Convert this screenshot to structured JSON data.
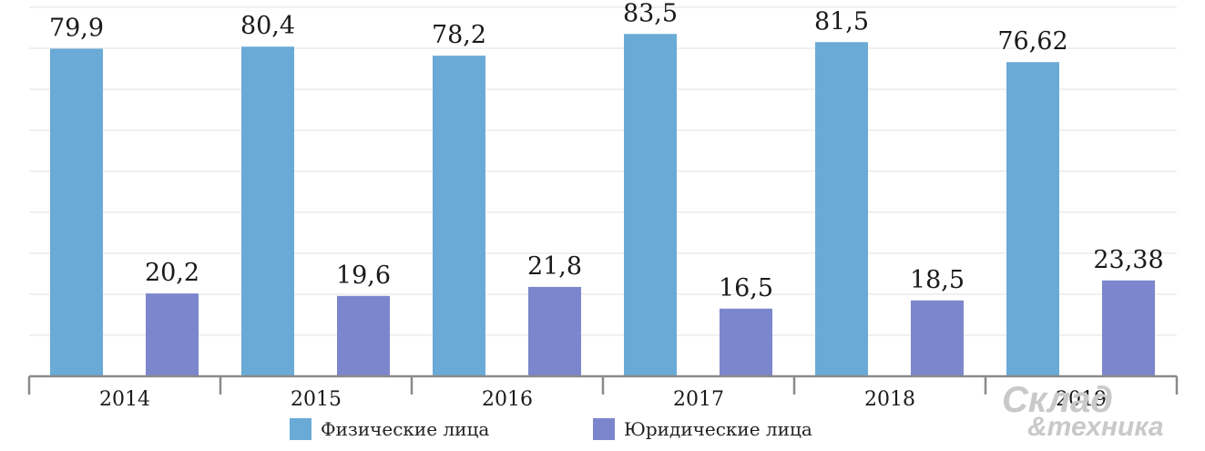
{
  "chart_data": {
    "type": "bar",
    "categories": [
      "2014",
      "2015",
      "2016",
      "2017",
      "2018",
      "2019"
    ],
    "series": [
      {
        "name": "Физические лица",
        "values": [
          79.9,
          80.4,
          78.2,
          83.5,
          81.5,
          76.62
        ],
        "labels": [
          "79,9",
          "80,4",
          "78,2",
          "83,5",
          "81,5",
          "76,62"
        ],
        "color": "#6aaad6"
      },
      {
        "name": "Юридические лица",
        "values": [
          20.2,
          19.6,
          21.8,
          16.5,
          18.5,
          23.38
        ],
        "labels": [
          "20,2",
          "19,6",
          "21,8",
          "16,5",
          "18,5",
          "23,38"
        ],
        "color": "#7b86cc"
      }
    ],
    "ylim": [
      0,
      90
    ],
    "grid": true,
    "legend": "bottom-center"
  },
  "watermark": {
    "line1": "Склад",
    "line2": "&техника"
  }
}
